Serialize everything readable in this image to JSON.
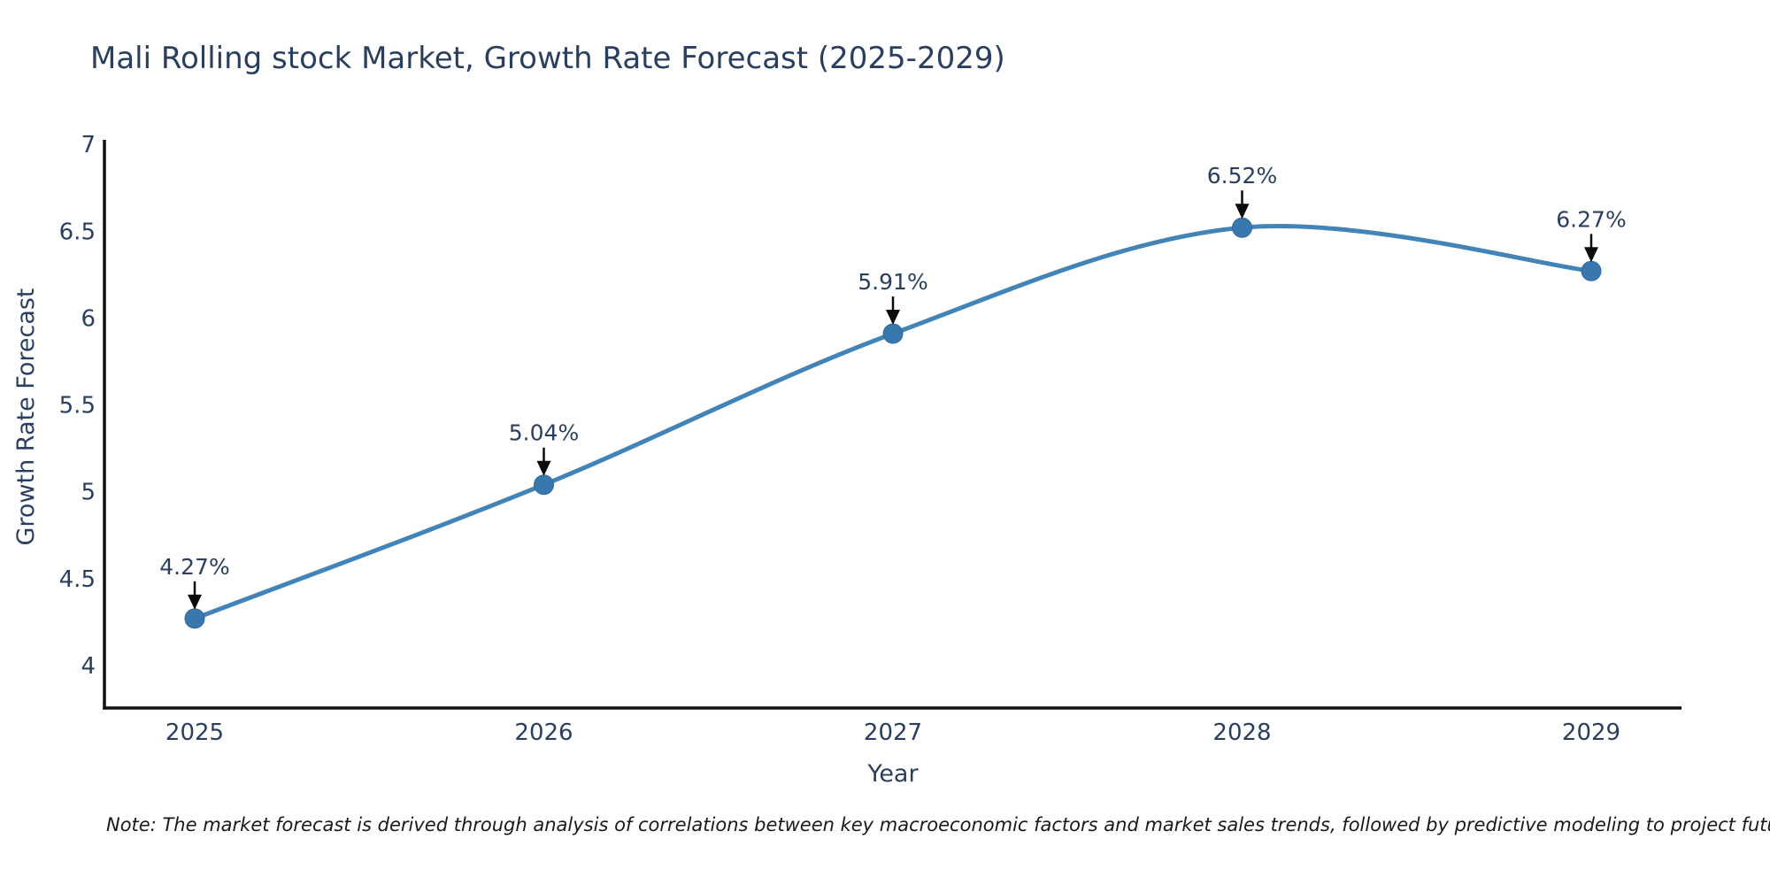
{
  "title": "Mali Rolling stock Market, Growth Rate Forecast (2025-2029)",
  "note": "Note: The market forecast is derived through analysis of correlations between key macroeconomic factors and market sales trends, followed by predictive modeling to project future sales",
  "colors": {
    "line": "#4284b8",
    "marker": "#3878ae",
    "text": "#2a3f5f",
    "axis": "#111111",
    "annotation_arrow": "#0b0b0b"
  },
  "chart_data": {
    "type": "line",
    "title": "Mali Rolling stock Market, Growth Rate Forecast (2025-2029)",
    "x": [
      2025,
      2026,
      2027,
      2028,
      2029
    ],
    "series": [
      {
        "name": "Growth Rate Forecast",
        "values": [
          4.27,
          5.04,
          5.91,
          6.52,
          6.27
        ]
      }
    ],
    "point_labels": [
      "4.27%",
      "5.04%",
      "5.91%",
      "6.52%",
      "6.27%"
    ],
    "xlabel": "Year",
    "ylabel": "Growth Rate Forecast",
    "ylim": [
      3.75,
      7.02
    ],
    "yticks": [
      4,
      4.5,
      5,
      5.5,
      6,
      6.5,
      7
    ],
    "grid": false,
    "line_shape": "spline",
    "legend_position": "none"
  }
}
